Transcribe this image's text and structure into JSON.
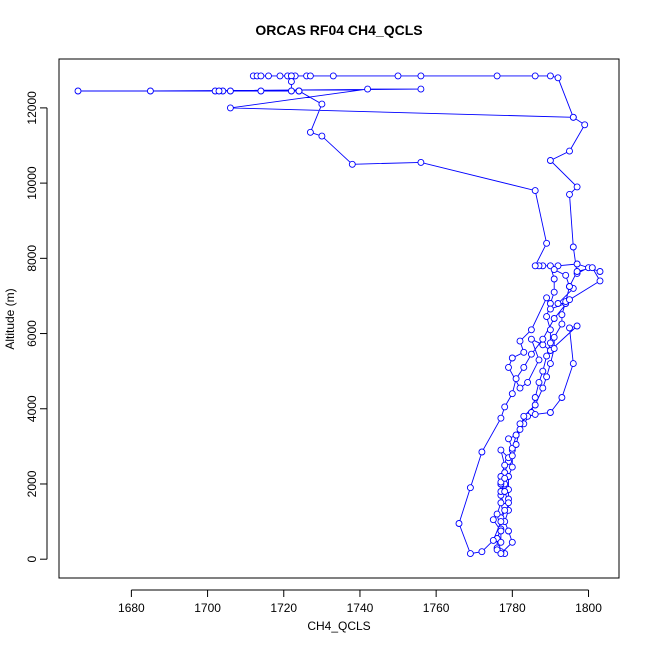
{
  "chart_data": {
    "type": "line",
    "title": "ORCAS RF04 CH4_QCLS",
    "xlabel": "CH4_QCLS",
    "ylabel": "Altitude (m)",
    "xlim": [
      1661,
      1808
    ],
    "ylim": [
      -500,
      13300
    ],
    "xticks": [
      1680,
      1700,
      1720,
      1740,
      1760,
      1780,
      1800
    ],
    "yticks": [
      0,
      2000,
      4000,
      6000,
      8000,
      10000,
      12000
    ],
    "grid": false,
    "markers": "open circles",
    "color": "#0000ff",
    "series": [
      {
        "values": [
          [
            1778,
            150
          ],
          [
            1777,
            200
          ],
          [
            1776,
            300
          ],
          [
            1776,
            550
          ],
          [
            1777,
            800
          ],
          [
            1777,
            1100
          ],
          [
            1778,
            1400
          ],
          [
            1777,
            1700
          ],
          [
            1777,
            2000
          ],
          [
            1778,
            2300
          ],
          [
            1779,
            2600
          ],
          [
            1780,
            2900
          ],
          [
            1781,
            3300
          ],
          [
            1783,
            3600
          ],
          [
            1785,
            3900
          ],
          [
            1786,
            4300
          ],
          [
            1787,
            4700
          ],
          [
            1788,
            5000
          ],
          [
            1789,
            5400
          ],
          [
            1790,
            5750
          ],
          [
            1790,
            6100
          ],
          [
            1789,
            6450
          ],
          [
            1790,
            6800
          ],
          [
            1791,
            7100
          ],
          [
            1791,
            7450
          ],
          [
            1790,
            7800
          ],
          [
            1788,
            7800
          ],
          [
            1787,
            7800
          ],
          [
            1786,
            7800
          ],
          [
            1789,
            8400
          ],
          [
            1786,
            9800
          ],
          [
            1756,
            10550
          ],
          [
            1738,
            10500
          ],
          [
            1730,
            11250
          ],
          [
            1727,
            11350
          ],
          [
            1730,
            12100
          ],
          [
            1724,
            12450
          ],
          [
            1714,
            12450
          ],
          [
            1706,
            12450
          ],
          [
            1704,
            12450
          ],
          [
            1702,
            12450
          ],
          [
            1703,
            12450
          ],
          [
            1666,
            12450
          ],
          [
            1685,
            12450
          ],
          [
            1756,
            12500
          ],
          [
            1742,
            12500
          ],
          [
            1706,
            12000
          ],
          [
            1796,
            11750
          ],
          [
            1799,
            11550
          ],
          [
            1795,
            10850
          ],
          [
            1790,
            10600
          ],
          [
            1797,
            9900
          ],
          [
            1795,
            9700
          ],
          [
            1796,
            8300
          ],
          [
            1797,
            7600
          ],
          [
            1800,
            7750
          ],
          [
            1803,
            7650
          ],
          [
            1797,
            7850
          ],
          [
            1792,
            7800
          ],
          [
            1791,
            7700
          ],
          [
            1794,
            7550
          ],
          [
            1795,
            7250
          ],
          [
            1796,
            7200
          ],
          [
            1792,
            6800
          ],
          [
            1794,
            6800
          ],
          [
            1790,
            6650
          ],
          [
            1789,
            6950
          ],
          [
            1785,
            6100
          ],
          [
            1782,
            5800
          ],
          [
            1783,
            5500
          ],
          [
            1780,
            5350
          ],
          [
            1779,
            5100
          ],
          [
            1782,
            4550
          ],
          [
            1784,
            4700
          ],
          [
            1787,
            5300
          ],
          [
            1785,
            5850
          ],
          [
            1788,
            5700
          ],
          [
            1790,
            5550
          ],
          [
            1797,
            6200
          ],
          [
            1795,
            6150
          ],
          [
            1796,
            5200
          ],
          [
            1793,
            4300
          ],
          [
            1790,
            3900
          ],
          [
            1786,
            3850
          ],
          [
            1784,
            3800
          ],
          [
            1782,
            3600
          ],
          [
            1781,
            3300
          ],
          [
            1779,
            3200
          ],
          [
            1780,
            2950
          ],
          [
            1779,
            2700
          ],
          [
            1777,
            2900
          ],
          [
            1778,
            2500
          ],
          [
            1777,
            2200
          ],
          [
            1778,
            2000
          ],
          [
            1777,
            1800
          ],
          [
            1777,
            1500
          ],
          [
            1776,
            1200
          ],
          [
            1775,
            1050
          ],
          [
            1777,
            750
          ],
          [
            1777,
            450
          ],
          [
            1776,
            250
          ],
          [
            1777,
            150
          ],
          [
            1780,
            450
          ],
          [
            1779,
            750
          ],
          [
            1778,
            1000
          ],
          [
            1779,
            1300
          ],
          [
            1779,
            1600
          ],
          [
            1779,
            1850
          ],
          [
            1779,
            2200
          ],
          [
            1780,
            2450
          ],
          [
            1780,
            2750
          ],
          [
            1781,
            3050
          ],
          [
            1782,
            3450
          ],
          [
            1783,
            3800
          ],
          [
            1786,
            4100
          ],
          [
            1788,
            4550
          ],
          [
            1789,
            4850
          ],
          [
            1790,
            5200
          ],
          [
            1791,
            5600
          ],
          [
            1791,
            5900
          ],
          [
            1793,
            6250
          ],
          [
            1793,
            6500
          ],
          [
            1794,
            6850
          ],
          [
            1795,
            7250
          ],
          [
            1797,
            7650
          ],
          [
            1801,
            7750
          ],
          [
            1803,
            7400
          ],
          [
            1795,
            6900
          ],
          [
            1791,
            6400
          ],
          [
            1788,
            5850
          ],
          [
            1785,
            5450
          ],
          [
            1783,
            5100
          ],
          [
            1781,
            4800
          ],
          [
            1780,
            4400
          ],
          [
            1778,
            4050
          ],
          [
            1777,
            3750
          ],
          [
            1772,
            2850
          ],
          [
            1769,
            1900
          ],
          [
            1766,
            950
          ],
          [
            1769,
            150
          ],
          [
            1772,
            200
          ],
          [
            1775,
            500
          ],
          [
            1777,
            1000
          ],
          [
            1778,
            1300
          ],
          [
            1779,
            1500
          ],
          [
            1778,
            1800
          ],
          [
            1777,
            2000
          ],
          [
            1777,
            2050
          ],
          [
            1778,
            2150
          ]
        ]
      },
      {
        "values": [
          [
            1712,
            12850
          ],
          [
            1713,
            12850
          ],
          [
            1714,
            12850
          ],
          [
            1716,
            12850
          ],
          [
            1719,
            12850
          ],
          [
            1721,
            12850
          ],
          [
            1722,
            12850
          ],
          [
            1723,
            12850
          ],
          [
            1726,
            12850
          ],
          [
            1727,
            12850
          ],
          [
            1733,
            12850
          ],
          [
            1750,
            12850
          ],
          [
            1756,
            12850
          ],
          [
            1776,
            12850
          ],
          [
            1786,
            12850
          ],
          [
            1790,
            12850
          ],
          [
            1792,
            12800
          ],
          [
            1796,
            11750
          ]
        ]
      },
      {
        "values": [
          [
            1722,
            12850
          ],
          [
            1722,
            12700
          ],
          [
            1722,
            12450
          ],
          [
            1724,
            12450
          ]
        ]
      }
    ]
  }
}
